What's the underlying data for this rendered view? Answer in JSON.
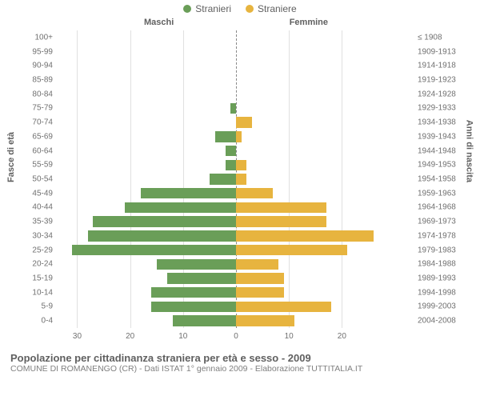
{
  "legend": {
    "series1": {
      "label": "Stranieri",
      "color": "#6a9e58"
    },
    "series2": {
      "label": "Straniere",
      "color": "#e7b43f"
    }
  },
  "headers": {
    "male": "Maschi",
    "female": "Femmine",
    "left_axis": "Fasce di età",
    "right_axis": "Anni di nascita"
  },
  "chart": {
    "type": "population-pyramid",
    "max_value": 34,
    "x_ticks_left": [
      30,
      20,
      10,
      0
    ],
    "x_ticks_right": [
      0,
      10,
      20
    ],
    "grid_color": "#e0e0e0",
    "center_color": "#888888",
    "background": "#ffffff",
    "bar_gap_ratio": 0.22,
    "rows": [
      {
        "age": "100+",
        "year": "≤ 1908",
        "m": 0,
        "f": 0
      },
      {
        "age": "95-99",
        "year": "1909-1913",
        "m": 0,
        "f": 0
      },
      {
        "age": "90-94",
        "year": "1914-1918",
        "m": 0,
        "f": 0
      },
      {
        "age": "85-89",
        "year": "1919-1923",
        "m": 0,
        "f": 0
      },
      {
        "age": "80-84",
        "year": "1924-1928",
        "m": 0,
        "f": 0
      },
      {
        "age": "75-79",
        "year": "1929-1933",
        "m": 1,
        "f": 0
      },
      {
        "age": "70-74",
        "year": "1934-1938",
        "m": 0,
        "f": 3
      },
      {
        "age": "65-69",
        "year": "1939-1943",
        "m": 4,
        "f": 1
      },
      {
        "age": "60-64",
        "year": "1944-1948",
        "m": 2,
        "f": 0
      },
      {
        "age": "55-59",
        "year": "1949-1953",
        "m": 2,
        "f": 2
      },
      {
        "age": "50-54",
        "year": "1954-1958",
        "m": 5,
        "f": 2
      },
      {
        "age": "45-49",
        "year": "1959-1963",
        "m": 18,
        "f": 7
      },
      {
        "age": "40-44",
        "year": "1964-1968",
        "m": 21,
        "f": 17
      },
      {
        "age": "35-39",
        "year": "1969-1973",
        "m": 27,
        "f": 17
      },
      {
        "age": "30-34",
        "year": "1974-1978",
        "m": 28,
        "f": 26
      },
      {
        "age": "25-29",
        "year": "1979-1983",
        "m": 31,
        "f": 21
      },
      {
        "age": "20-24",
        "year": "1984-1988",
        "m": 15,
        "f": 8
      },
      {
        "age": "15-19",
        "year": "1989-1993",
        "m": 13,
        "f": 9
      },
      {
        "age": "10-14",
        "year": "1994-1998",
        "m": 16,
        "f": 9
      },
      {
        "age": "5-9",
        "year": "1999-2003",
        "m": 16,
        "f": 18
      },
      {
        "age": "0-4",
        "year": "2004-2008",
        "m": 12,
        "f": 11
      }
    ]
  },
  "footer": {
    "title": "Popolazione per cittadinanza straniera per età e sesso - 2009",
    "sub": "COMUNE DI ROMANENGO (CR) - Dati ISTAT 1° gennaio 2009 - Elaborazione TUTTITALIA.IT"
  }
}
